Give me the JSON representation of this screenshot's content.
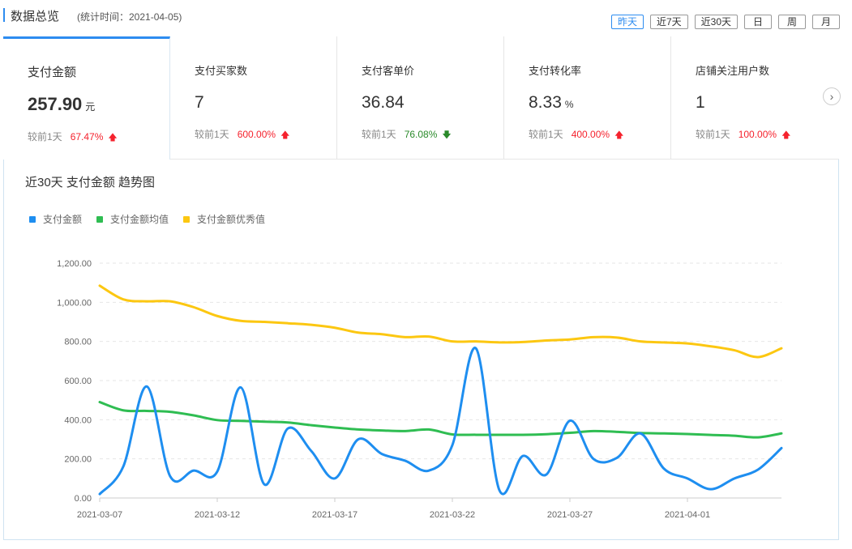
{
  "header": {
    "title": "数据总览",
    "subtitle": "(统计时间：2021-04-05)",
    "ranges": [
      {
        "label": "昨天",
        "active": true
      },
      {
        "label": "近7天",
        "active": false
      },
      {
        "label": "近30天",
        "active": false
      },
      {
        "label": "日",
        "active": false
      },
      {
        "label": "周",
        "active": false
      },
      {
        "label": "月",
        "active": false
      }
    ]
  },
  "cards": [
    {
      "label": "支付金额",
      "value": "257.90",
      "unit": "元",
      "compare_label": "较前1天",
      "change": "67.47%",
      "direction": "up"
    },
    {
      "label": "支付买家数",
      "value": "7",
      "unit": "",
      "compare_label": "较前1天",
      "change": "600.00%",
      "direction": "up"
    },
    {
      "label": "支付客单价",
      "value": "36.84",
      "unit": "",
      "compare_label": "较前1天",
      "change": "76.08%",
      "direction": "down"
    },
    {
      "label": "支付转化率",
      "value": "8.33",
      "unit": "%",
      "compare_label": "较前1天",
      "change": "400.00%",
      "direction": "up"
    },
    {
      "label": "店铺关注用户数",
      "value": "1",
      "unit": "",
      "compare_label": "较前1天",
      "change": "100.00%",
      "direction": "up"
    }
  ],
  "icons": {
    "next": "chevron-right-icon",
    "up": "arrow-up-icon",
    "down": "arrow-down-icon"
  },
  "colors": {
    "accent": "#2d8cf0",
    "up": "#f5222d",
    "down": "#2a8a2a"
  },
  "chart_title": "近30天 支付金额 趋势图",
  "chart_data": {
    "type": "line",
    "title": "近30天 支付金额 趋势图",
    "xlabel": "",
    "ylabel": "",
    "ylim": [
      0,
      1200
    ],
    "y_ticks": [
      0,
      200,
      400,
      600,
      800,
      1000,
      1200
    ],
    "y_tick_labels": [
      "0.00",
      "200.00",
      "400.00",
      "600.00",
      "800.00",
      "1,000.00",
      "1,200.00"
    ],
    "x": [
      "2021-03-07",
      "2021-03-08",
      "2021-03-09",
      "2021-03-10",
      "2021-03-11",
      "2021-03-12",
      "2021-03-13",
      "2021-03-14",
      "2021-03-15",
      "2021-03-16",
      "2021-03-17",
      "2021-03-18",
      "2021-03-19",
      "2021-03-20",
      "2021-03-21",
      "2021-03-22",
      "2021-03-23",
      "2021-03-24",
      "2021-03-25",
      "2021-03-26",
      "2021-03-27",
      "2021-03-28",
      "2021-03-29",
      "2021-03-30",
      "2021-03-31",
      "2021-04-01",
      "2021-04-02",
      "2021-04-03",
      "2021-04-04",
      "2021-04-05"
    ],
    "x_tick_labels": [
      "2021-03-07",
      "2021-03-12",
      "2021-03-17",
      "2021-03-22",
      "2021-03-27",
      "2021-04-01"
    ],
    "grid": true,
    "legend_position": "top-left",
    "series": [
      {
        "name": "支付金额",
        "color": "#1e8ef0",
        "values": [
          20,
          160,
          570,
          110,
          140,
          135,
          565,
          70,
          355,
          240,
          100,
          300,
          225,
          190,
          140,
          270,
          765,
          40,
          215,
          120,
          395,
          200,
          205,
          330,
          150,
          100,
          45,
          100,
          145,
          255
        ]
      },
      {
        "name": "支付金额均值",
        "color": "#2fbd52",
        "values": [
          490,
          448,
          445,
          440,
          422,
          398,
          394,
          390,
          386,
          372,
          360,
          350,
          345,
          342,
          350,
          325,
          323,
          323,
          323,
          326,
          333,
          342,
          338,
          332,
          330,
          327,
          322,
          318,
          310,
          330
        ]
      },
      {
        "name": "支付金额优秀值",
        "color": "#fcc711",
        "values": [
          1085,
          1015,
          1005,
          1005,
          975,
          930,
          905,
          900,
          893,
          885,
          870,
          845,
          837,
          822,
          825,
          800,
          800,
          795,
          797,
          805,
          810,
          822,
          820,
          800,
          795,
          790,
          775,
          755,
          720,
          765
        ]
      }
    ]
  }
}
